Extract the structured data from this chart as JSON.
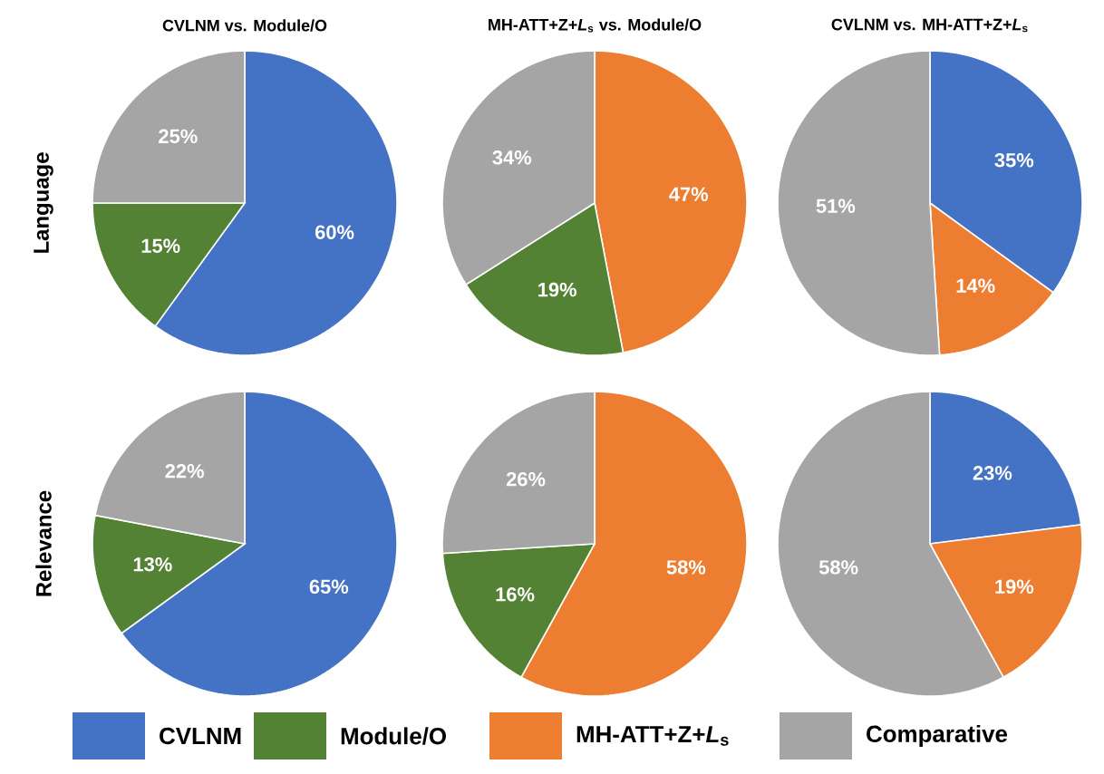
{
  "chart_data": [
    {
      "type": "pie",
      "title": "CVLNM vs. Module/O",
      "ylabel": "Language",
      "legend": "bottom",
      "categories": [
        "CVLNM",
        "Module/O",
        "Comparative"
      ],
      "values": [
        60,
        15,
        25
      ],
      "value_labels": [
        "60%",
        "15%",
        "25%"
      ],
      "colors": [
        "#4472c4",
        "#548235",
        "#a5a5a5"
      ]
    },
    {
      "type": "pie",
      "title": "MH-ATT+Z+*L*$_{s}$ vs. Module/O",
      "legend": "bottom",
      "categories": [
        "MH-ATT+Z+*L*$_{s}$",
        null,
        null
      ],
      "values": [
        47,
        19,
        34
      ],
      "value_labels": [
        "47%",
        "19%",
        "34%"
      ],
      "colors": [
        "#ed7d31",
        "#548235",
        "#a5a5a5"
      ]
    },
    {
      "type": "pie",
      "title": "CVLNM vs. MH-ATT+Z+*L*$_{s}$",
      "categories": [
        null,
        null,
        null
      ],
      "values": [
        35,
        14,
        51
      ],
      "value_labels": [
        "35%",
        "14%",
        "51%"
      ],
      "colors": [
        "#4472c4",
        "#ed7d31",
        "#a5a5a5"
      ]
    },
    {
      "type": "pie",
      "ylabel": "Relevance",
      "categories": [
        null,
        null,
        null
      ],
      "values": [
        65,
        13,
        22
      ],
      "value_labels": [
        "65%",
        "13%",
        "22%"
      ],
      "colors": [
        "#4472c4",
        "#548235",
        "#a5a5a5"
      ]
    },
    {
      "type": "pie",
      "categories": [
        null,
        null,
        null
      ],
      "values": [
        58,
        16,
        26
      ],
      "value_labels": [
        "58%",
        "16%",
        "26%"
      ],
      "colors": [
        "#ed7d31",
        "#548235",
        "#a5a5a5"
      ]
    },
    {
      "type": "pie",
      "categories": [
        null,
        null,
        null
      ],
      "values": [
        23,
        19,
        58
      ],
      "value_labels": [
        "23%",
        "19%",
        "58%"
      ],
      "colors": [
        "#4472c4",
        "#ed7d31",
        "#a5a5a5"
      ]
    }
  ]
}
